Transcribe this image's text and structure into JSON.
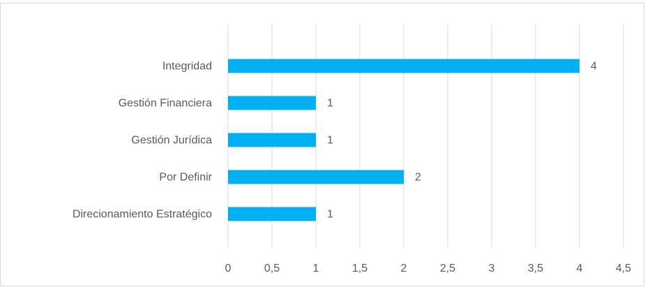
{
  "chart_data": {
    "type": "hbar",
    "categories": [
      "Integridad",
      "Gestión Financiera",
      "Gestión Jurídica",
      "Por Definir",
      "Direcionamiento Estratégico"
    ],
    "values": [
      4,
      1,
      1,
      2,
      1
    ],
    "color": "#00b0f0",
    "xlim": [
      0,
      4.5
    ],
    "xticks": [
      0,
      {
        "value": 0.5,
        "label": "0,5"
      },
      1,
      {
        "value": 1.5,
        "label": "1,5"
      },
      2,
      {
        "value": 2.5,
        "label": "2,5"
      },
      3,
      {
        "value": 3.5,
        "label": "3,5"
      },
      4,
      {
        "value": 4.5,
        "label": "4,5"
      }
    ],
    "grid": true
  }
}
